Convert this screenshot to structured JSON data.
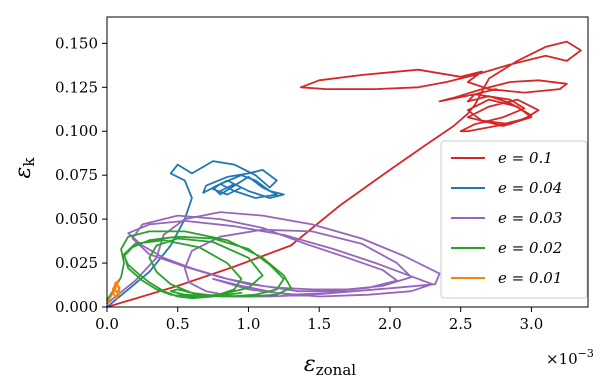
{
  "chart_data": {
    "type": "line",
    "xlabel": "ε",
    "xlabel_sub": "zonal",
    "ylabel": "ε",
    "ylabel_sub": "k",
    "x_multiplier": "×10",
    "x_multiplier_exp": "−3",
    "xlim": [
      0,
      3.4
    ],
    "ylim": [
      0,
      0.165
    ],
    "x_ticks": [
      0.0,
      0.5,
      1.0,
      1.5,
      2.0,
      2.5,
      3.0
    ],
    "x_tick_labels": [
      "0.0",
      "0.5",
      "1.0",
      "1.5",
      "2.0",
      "2.5",
      "3.0"
    ],
    "y_ticks": [
      0,
      0.025,
      0.05,
      0.075,
      0.1,
      0.125,
      0.15
    ],
    "y_tick_labels": [
      "0.000",
      "0.025",
      "0.050",
      "0.075",
      "0.100",
      "0.125",
      "0.150"
    ],
    "legend_position": "center-right",
    "grid": false,
    "series": [
      {
        "name": "e = 0.1",
        "color": "#d62728",
        "x": [
          0.0,
          0.5,
          0.9,
          1.3,
          1.65,
          2.0,
          2.25,
          2.45,
          2.55,
          2.6,
          2.7,
          2.9,
          3.1,
          3.25,
          3.35,
          3.25,
          3.1,
          2.85,
          2.6,
          2.4,
          2.2,
          1.9,
          1.55,
          1.37,
          1.5,
          1.8,
          2.2,
          2.5,
          2.65,
          2.55,
          2.7,
          2.95,
          3.2,
          3.25,
          3.05,
          2.85,
          2.65,
          2.45,
          2.35,
          2.6,
          2.85,
          2.95,
          2.8,
          2.6,
          2.5,
          2.55,
          2.75,
          2.95,
          3.05,
          2.9,
          2.7,
          2.55,
          2.8,
          3.0,
          2.9,
          2.7,
          2.55,
          2.65,
          2.85,
          3.0,
          2.85,
          2.7,
          2.55,
          2.6,
          2.75
        ],
        "y": [
          0.0,
          0.012,
          0.023,
          0.035,
          0.058,
          0.078,
          0.092,
          0.103,
          0.11,
          0.115,
          0.13,
          0.14,
          0.148,
          0.151,
          0.146,
          0.14,
          0.143,
          0.138,
          0.132,
          0.128,
          0.125,
          0.124,
          0.124,
          0.125,
          0.129,
          0.132,
          0.135,
          0.131,
          0.134,
          0.128,
          0.124,
          0.122,
          0.124,
          0.127,
          0.129,
          0.128,
          0.124,
          0.119,
          0.117,
          0.121,
          0.118,
          0.113,
          0.108,
          0.104,
          0.1,
          0.1,
          0.103,
          0.107,
          0.112,
          0.118,
          0.114,
          0.108,
          0.103,
          0.108,
          0.114,
          0.118,
          0.112,
          0.106,
          0.104,
          0.109,
          0.116,
          0.12,
          0.117,
          0.121,
          0.124
        ]
      },
      {
        "name": "e = 0.04",
        "color": "#1f77b4",
        "x": [
          0.0,
          0.15,
          0.3,
          0.45,
          0.55,
          0.6,
          0.55,
          0.45,
          0.5,
          0.6,
          0.75,
          0.9,
          1.05,
          1.15,
          1.2,
          1.1,
          1.0,
          0.85,
          0.7,
          0.68,
          0.8,
          0.95,
          1.05,
          1.15,
          1.25,
          1.15,
          1.0,
          0.85,
          0.75,
          0.8,
          0.9,
          1.0,
          1.1,
          1.2,
          1.05,
          0.9,
          0.8,
          0.75,
          0.85,
          0.95,
          0.9,
          0.8
        ],
        "y": [
          0.0,
          0.01,
          0.02,
          0.035,
          0.05,
          0.062,
          0.072,
          0.076,
          0.081,
          0.076,
          0.083,
          0.081,
          0.075,
          0.068,
          0.072,
          0.078,
          0.076,
          0.074,
          0.069,
          0.065,
          0.07,
          0.075,
          0.072,
          0.066,
          0.064,
          0.062,
          0.066,
          0.072,
          0.068,
          0.064,
          0.069,
          0.074,
          0.068,
          0.064,
          0.062,
          0.066,
          0.07,
          0.067,
          0.064,
          0.068,
          0.07,
          0.066
        ]
      },
      {
        "name": "e = 0.03",
        "color": "#9467bd",
        "x": [
          0.0,
          0.2,
          0.35,
          0.4,
          0.55,
          0.8,
          1.1,
          1.45,
          1.8,
          2.1,
          2.35,
          2.32,
          2.05,
          1.75,
          1.45,
          1.15,
          0.9,
          0.7,
          0.58,
          0.55,
          0.6,
          0.8,
          1.1,
          1.45,
          1.8,
          2.05,
          2.15,
          1.95,
          1.7,
          1.45,
          1.2,
          1.0,
          0.8,
          0.55,
          0.3,
          0.18,
          0.25,
          0.5,
          0.8,
          1.1,
          1.4,
          1.7,
          1.95,
          2.05,
          1.85,
          1.6,
          1.35,
          1.1,
          0.85,
          0.6,
          0.4,
          0.25,
          0.15,
          0.3,
          0.55,
          0.9,
          1.25,
          1.6,
          1.9,
          2.3,
          2.15,
          1.85,
          1.5,
          1.2,
          0.95,
          0.75,
          1.0,
          1.3,
          1.6
        ],
        "y": [
          0.002,
          0.015,
          0.028,
          0.041,
          0.05,
          0.054,
          0.052,
          0.047,
          0.039,
          0.029,
          0.019,
          0.013,
          0.011,
          0.009,
          0.007,
          0.006,
          0.006,
          0.009,
          0.014,
          0.022,
          0.032,
          0.04,
          0.044,
          0.043,
          0.036,
          0.025,
          0.017,
          0.012,
          0.01,
          0.01,
          0.011,
          0.013,
          0.017,
          0.023,
          0.03,
          0.039,
          0.047,
          0.052,
          0.05,
          0.045,
          0.036,
          0.028,
          0.021,
          0.015,
          0.011,
          0.009,
          0.009,
          0.012,
          0.016,
          0.022,
          0.028,
          0.035,
          0.042,
          0.047,
          0.049,
          0.046,
          0.041,
          0.033,
          0.025,
          0.013,
          0.009,
          0.007,
          0.006,
          0.008,
          0.012,
          0.016,
          0.01,
          0.007,
          0.008
        ]
      },
      {
        "name": "e = 0.02",
        "color": "#2ca02c",
        "x": [
          0.0,
          0.05,
          0.1,
          0.12,
          0.1,
          0.15,
          0.3,
          0.55,
          0.85,
          1.1,
          1.25,
          1.3,
          1.2,
          1.0,
          0.8,
          0.6,
          0.45,
          0.35,
          0.3,
          0.35,
          0.5,
          0.75,
          1.0,
          1.1,
          1.0,
          0.8,
          0.6,
          0.45,
          0.35,
          0.25,
          0.15,
          0.12,
          0.2,
          0.4,
          0.65,
          0.85,
          0.95,
          0.9,
          0.75,
          0.6,
          0.5,
          0.4,
          0.3,
          0.22,
          0.15,
          0.12,
          0.18,
          0.3,
          0.5,
          0.75,
          1.0,
          1.15,
          1.25,
          1.2,
          1.05,
          0.85,
          0.65,
          0.5,
          0.45,
          0.55,
          0.75,
          0.95
        ],
        "y": [
          0.004,
          0.01,
          0.017,
          0.025,
          0.033,
          0.04,
          0.043,
          0.043,
          0.038,
          0.028,
          0.018,
          0.011,
          0.007,
          0.006,
          0.006,
          0.008,
          0.013,
          0.02,
          0.028,
          0.035,
          0.039,
          0.037,
          0.028,
          0.018,
          0.011,
          0.007,
          0.006,
          0.007,
          0.01,
          0.015,
          0.022,
          0.03,
          0.036,
          0.038,
          0.034,
          0.025,
          0.016,
          0.01,
          0.006,
          0.005,
          0.006,
          0.009,
          0.014,
          0.019,
          0.024,
          0.029,
          0.034,
          0.038,
          0.04,
          0.039,
          0.033,
          0.024,
          0.016,
          0.01,
          0.007,
          0.006,
          0.007,
          0.01,
          0.009,
          0.007,
          0.006,
          0.008
        ]
      },
      {
        "name": "e = 0.01",
        "color": "#ff7f0e",
        "x": [
          0.0,
          0.02,
          0.05,
          0.07,
          0.08,
          0.06,
          0.04,
          0.05,
          0.07,
          0.09,
          0.08,
          0.06,
          0.05,
          0.07,
          0.09,
          0.06
        ],
        "y": [
          0.002,
          0.005,
          0.009,
          0.013,
          0.015,
          0.013,
          0.01,
          0.007,
          0.005,
          0.008,
          0.012,
          0.014,
          0.011,
          0.008,
          0.011,
          0.014
        ]
      }
    ]
  }
}
